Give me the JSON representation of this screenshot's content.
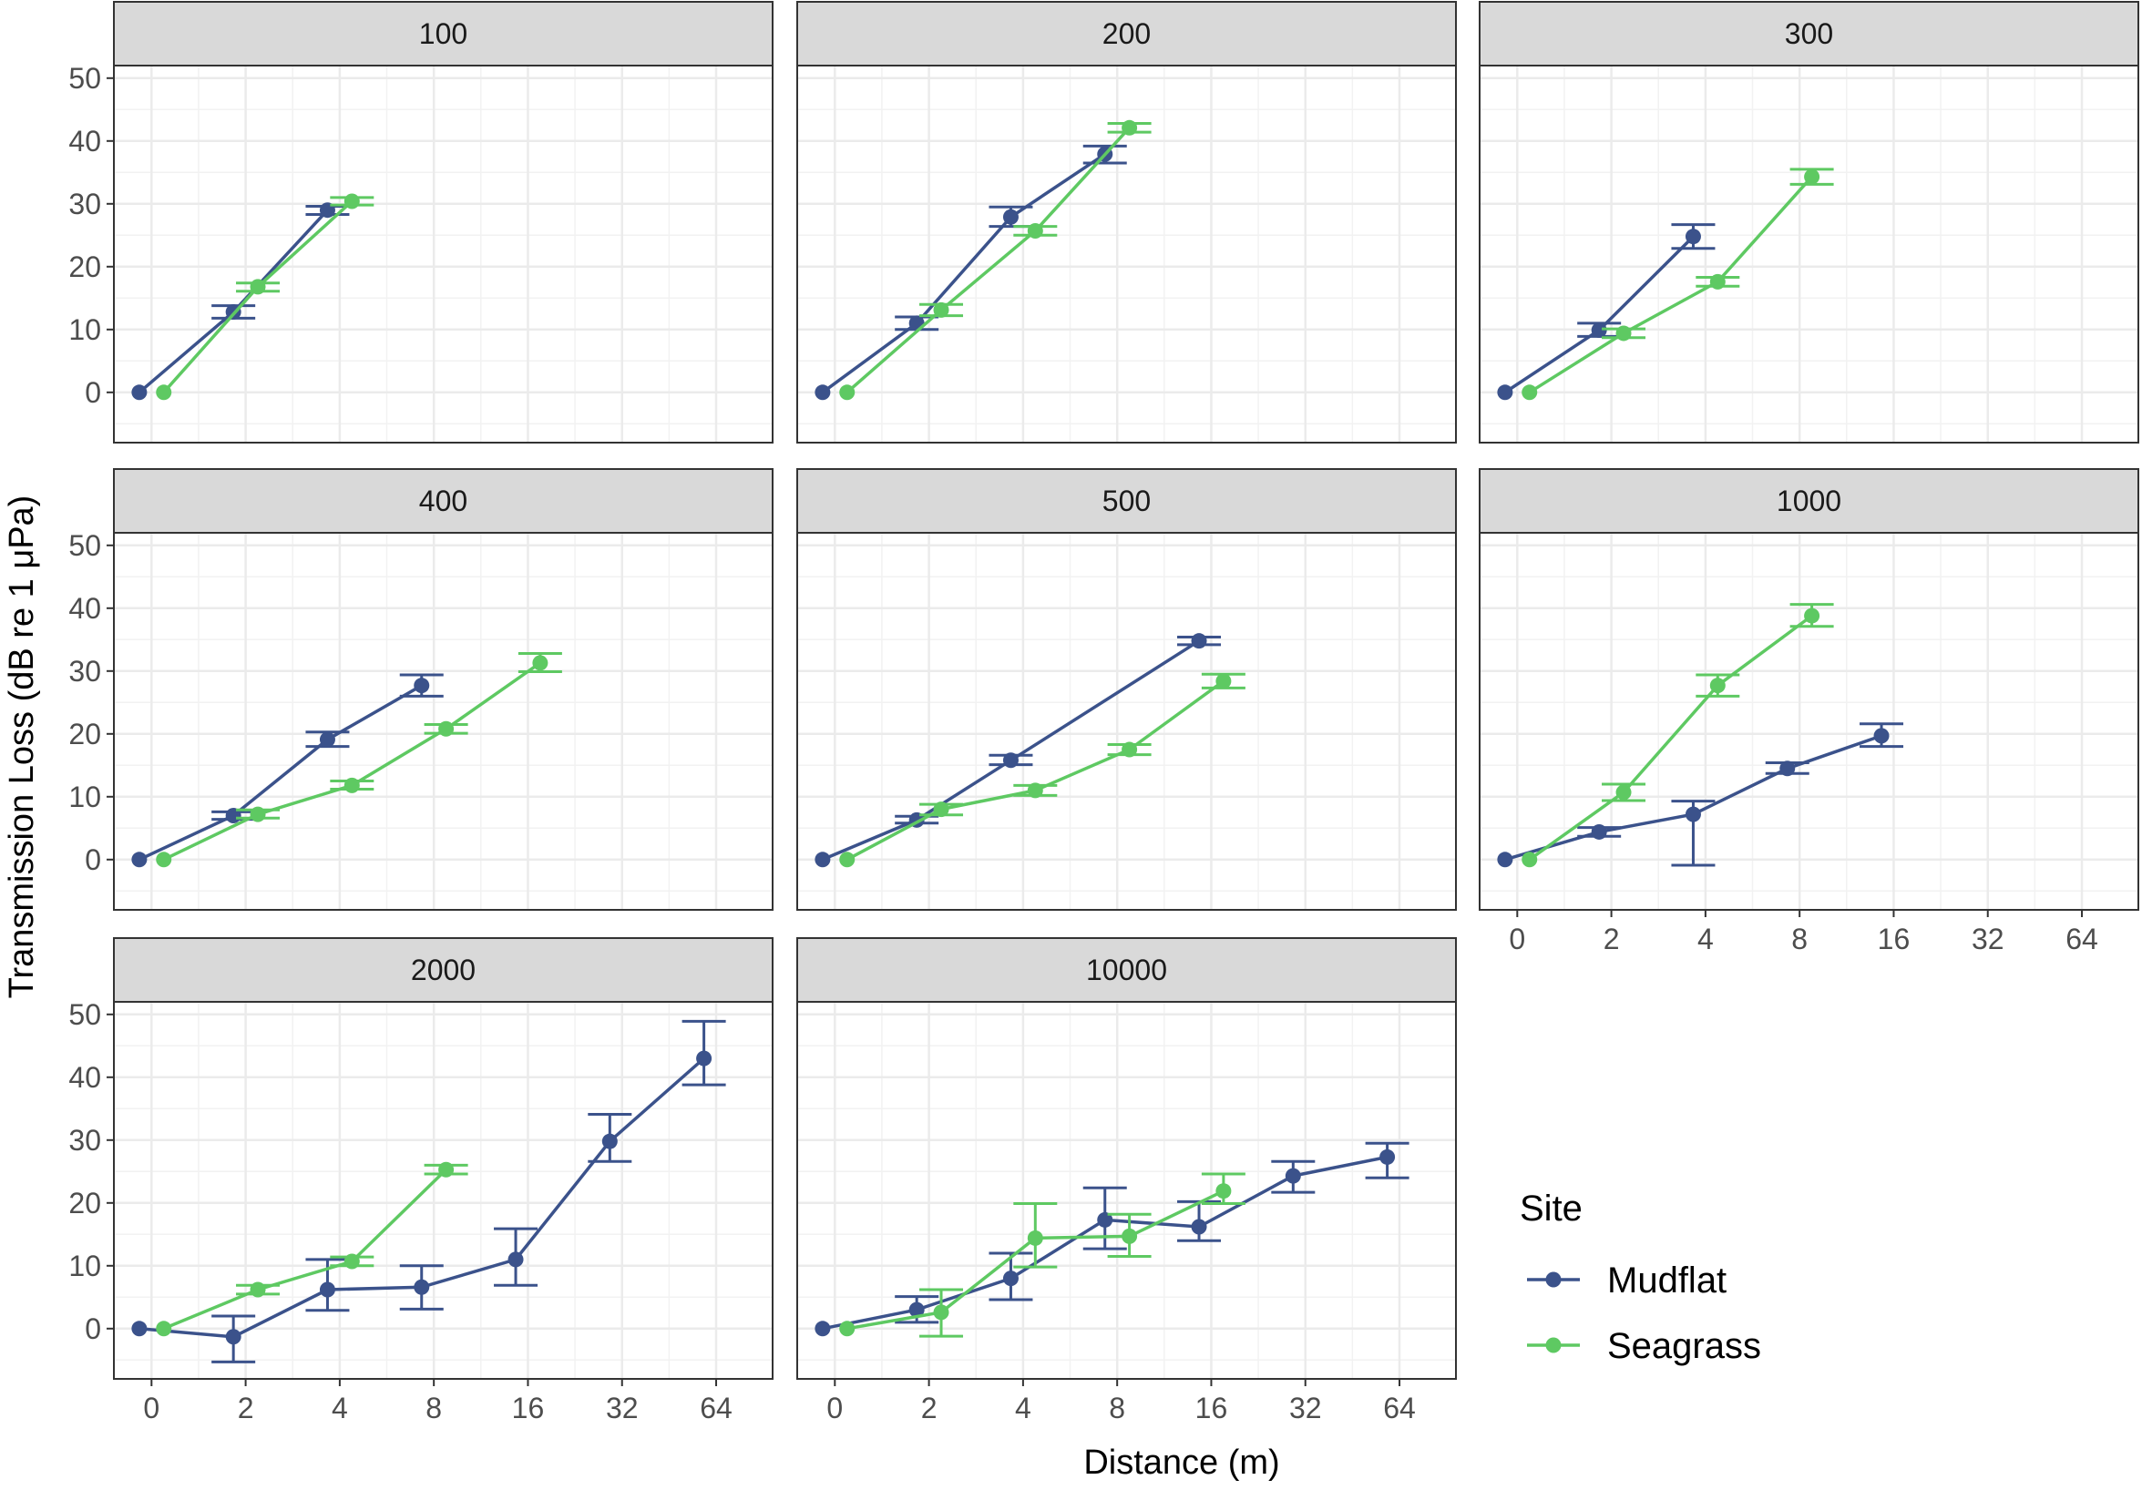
{
  "chart_data": {
    "type": "line",
    "facet_layout": "3 columns x 3 rows, facets fill row-wise",
    "xlabel": "Distance (m)",
    "ylabel": "Transmission Loss (dB re 1 μPa)",
    "x_ticks": [
      "0",
      "2",
      "4",
      "8",
      "16",
      "32",
      "64"
    ],
    "y_ticks": [
      "0",
      "10",
      "20",
      "30",
      "40",
      "50"
    ],
    "ylim": [
      -8,
      52
    ],
    "grid": true,
    "legend": {
      "title": "Site",
      "placement": "bottom-right",
      "items": [
        {
          "name": "Mudflat",
          "color": "#3b528b"
        },
        {
          "name": "Seagrass",
          "color": "#5ec962"
        }
      ]
    },
    "panels": [
      {
        "label": "100",
        "series": [
          {
            "name": "Mudflat",
            "color": "#3b528b",
            "points": [
              {
                "x": "0",
                "y": 0,
                "lo": 0,
                "hi": 0
              },
              {
                "x": "2",
                "y": 12.8,
                "lo": 11.8,
                "hi": 13.8
              },
              {
                "x": "4",
                "y": 29.0,
                "lo": 28.3,
                "hi": 29.6
              }
            ]
          },
          {
            "name": "Seagrass",
            "color": "#5ec962",
            "points": [
              {
                "x": "0",
                "y": 0,
                "lo": 0,
                "hi": 0
              },
              {
                "x": "2",
                "y": 16.8,
                "lo": 16.1,
                "hi": 17.4
              },
              {
                "x": "4",
                "y": 30.4,
                "lo": 29.8,
                "hi": 31.0
              }
            ]
          }
        ]
      },
      {
        "label": "200",
        "series": [
          {
            "name": "Mudflat",
            "color": "#3b528b",
            "points": [
              {
                "x": "0",
                "y": 0,
                "lo": 0,
                "hi": 0
              },
              {
                "x": "2",
                "y": 11.0,
                "lo": 10.0,
                "hi": 12.0
              },
              {
                "x": "4",
                "y": 27.9,
                "lo": 26.4,
                "hi": 29.5
              },
              {
                "x": "8",
                "y": 37.9,
                "lo": 36.5,
                "hi": 39.2
              }
            ]
          },
          {
            "name": "Seagrass",
            "color": "#5ec962",
            "points": [
              {
                "x": "0",
                "y": 0,
                "lo": 0,
                "hi": 0
              },
              {
                "x": "2",
                "y": 13.1,
                "lo": 12.2,
                "hi": 14.0
              },
              {
                "x": "4",
                "y": 25.7,
                "lo": 25.0,
                "hi": 26.4
              },
              {
                "x": "8",
                "y": 42.1,
                "lo": 41.4,
                "hi": 42.8
              }
            ]
          }
        ]
      },
      {
        "label": "300",
        "series": [
          {
            "name": "Mudflat",
            "color": "#3b528b",
            "points": [
              {
                "x": "0",
                "y": 0,
                "lo": 0,
                "hi": 0
              },
              {
                "x": "2",
                "y": 9.9,
                "lo": 8.9,
                "hi": 11.0
              },
              {
                "x": "4",
                "y": 24.8,
                "lo": 22.9,
                "hi": 26.7
              }
            ]
          },
          {
            "name": "Seagrass",
            "color": "#5ec962",
            "points": [
              {
                "x": "0",
                "y": 0,
                "lo": 0,
                "hi": 0
              },
              {
                "x": "2",
                "y": 9.4,
                "lo": 8.7,
                "hi": 10.1
              },
              {
                "x": "4",
                "y": 17.6,
                "lo": 16.9,
                "hi": 18.3
              },
              {
                "x": "8",
                "y": 34.3,
                "lo": 33.1,
                "hi": 35.5
              }
            ]
          }
        ]
      },
      {
        "label": "400",
        "series": [
          {
            "name": "Mudflat",
            "color": "#3b528b",
            "points": [
              {
                "x": "0",
                "y": 0,
                "lo": 0,
                "hi": 0
              },
              {
                "x": "2",
                "y": 7.0,
                "lo": 6.4,
                "hi": 7.6
              },
              {
                "x": "4",
                "y": 19.1,
                "lo": 18.0,
                "hi": 20.3
              },
              {
                "x": "8",
                "y": 27.7,
                "lo": 26.0,
                "hi": 29.4
              }
            ]
          },
          {
            "name": "Seagrass",
            "color": "#5ec962",
            "points": [
              {
                "x": "0",
                "y": 0,
                "lo": 0,
                "hi": 0
              },
              {
                "x": "2",
                "y": 7.2,
                "lo": 6.6,
                "hi": 7.9
              },
              {
                "x": "4",
                "y": 11.8,
                "lo": 11.2,
                "hi": 12.5
              },
              {
                "x": "8",
                "y": 20.8,
                "lo": 20.1,
                "hi": 21.5
              },
              {
                "x": "16",
                "y": 31.3,
                "lo": 29.9,
                "hi": 32.8
              }
            ]
          }
        ]
      },
      {
        "label": "500",
        "series": [
          {
            "name": "Mudflat",
            "color": "#3b528b",
            "points": [
              {
                "x": "0",
                "y": 0,
                "lo": 0,
                "hi": 0
              },
              {
                "x": "2",
                "y": 6.3,
                "lo": 5.8,
                "hi": 6.9
              },
              {
                "x": "4",
                "y": 15.8,
                "lo": 15.1,
                "hi": 16.6
              },
              {
                "x": "16",
                "y": 34.8,
                "lo": 34.2,
                "hi": 35.4
              }
            ]
          },
          {
            "name": "Seagrass",
            "color": "#5ec962",
            "points": [
              {
                "x": "0",
                "y": 0,
                "lo": 0,
                "hi": 0
              },
              {
                "x": "2",
                "y": 8.0,
                "lo": 7.1,
                "hi": 8.8
              },
              {
                "x": "4",
                "y": 11.0,
                "lo": 10.2,
                "hi": 11.8
              },
              {
                "x": "8",
                "y": 17.5,
                "lo": 16.7,
                "hi": 18.3
              },
              {
                "x": "16",
                "y": 28.4,
                "lo": 27.3,
                "hi": 29.5
              }
            ]
          }
        ]
      },
      {
        "label": "1000",
        "series": [
          {
            "name": "Mudflat",
            "color": "#3b528b",
            "points": [
              {
                "x": "0",
                "y": 0,
                "lo": 0,
                "hi": 0
              },
              {
                "x": "2",
                "y": 4.4,
                "lo": 3.7,
                "hi": 5.1
              },
              {
                "x": "4",
                "y": 7.2,
                "lo": -0.9,
                "hi": 9.3
              },
              {
                "x": "8",
                "y": 14.5,
                "lo": 13.7,
                "hi": 15.4
              },
              {
                "x": "16",
                "y": 19.7,
                "lo": 18.0,
                "hi": 21.6
              }
            ]
          },
          {
            "name": "Seagrass",
            "color": "#5ec962",
            "points": [
              {
                "x": "0",
                "y": 0,
                "lo": 0,
                "hi": 0
              },
              {
                "x": "2",
                "y": 10.7,
                "lo": 9.4,
                "hi": 12.0
              },
              {
                "x": "4",
                "y": 27.7,
                "lo": 26.0,
                "hi": 29.4
              },
              {
                "x": "8",
                "y": 38.8,
                "lo": 37.1,
                "hi": 40.6
              }
            ]
          }
        ]
      },
      {
        "label": "2000",
        "series": [
          {
            "name": "Mudflat",
            "color": "#3b528b",
            "points": [
              {
                "x": "0",
                "y": 0,
                "lo": 0,
                "hi": 0
              },
              {
                "x": "2",
                "y": -1.3,
                "lo": -5.3,
                "hi": 2.0
              },
              {
                "x": "4",
                "y": 6.2,
                "lo": 2.9,
                "hi": 11.0
              },
              {
                "x": "8",
                "y": 6.6,
                "lo": 3.1,
                "hi": 10.0
              },
              {
                "x": "16",
                "y": 11.0,
                "lo": 6.9,
                "hi": 15.9
              },
              {
                "x": "32",
                "y": 29.8,
                "lo": 26.6,
                "hi": 34.1
              },
              {
                "x": "64",
                "y": 43.0,
                "lo": 38.8,
                "hi": 48.9
              }
            ]
          },
          {
            "name": "Seagrass",
            "color": "#5ec962",
            "points": [
              {
                "x": "0",
                "y": 0,
                "lo": 0,
                "hi": 0
              },
              {
                "x": "2",
                "y": 6.2,
                "lo": 5.5,
                "hi": 6.9
              },
              {
                "x": "4",
                "y": 10.7,
                "lo": 10.0,
                "hi": 11.4
              },
              {
                "x": "8",
                "y": 25.3,
                "lo": 24.6,
                "hi": 26.0
              }
            ]
          }
        ]
      },
      {
        "label": "10000",
        "series": [
          {
            "name": "Mudflat",
            "color": "#3b528b",
            "points": [
              {
                "x": "0",
                "y": 0,
                "lo": 0,
                "hi": 0
              },
              {
                "x": "2",
                "y": 3.0,
                "lo": 1.0,
                "hi": 5.1
              },
              {
                "x": "4",
                "y": 8.0,
                "lo": 4.6,
                "hi": 12.0
              },
              {
                "x": "8",
                "y": 17.3,
                "lo": 12.7,
                "hi": 22.4
              },
              {
                "x": "16",
                "y": 16.2,
                "lo": 14.0,
                "hi": 20.2
              },
              {
                "x": "32",
                "y": 24.3,
                "lo": 21.7,
                "hi": 26.6
              },
              {
                "x": "64",
                "y": 27.3,
                "lo": 24.0,
                "hi": 29.5
              }
            ]
          },
          {
            "name": "Seagrass",
            "color": "#5ec962",
            "points": [
              {
                "x": "0",
                "y": 0,
                "lo": 0,
                "hi": 0
              },
              {
                "x": "2",
                "y": 2.6,
                "lo": -1.2,
                "hi": 6.2
              },
              {
                "x": "4",
                "y": 14.4,
                "lo": 9.8,
                "hi": 19.9
              },
              {
                "x": "8",
                "y": 14.7,
                "lo": 11.5,
                "hi": 18.2
              },
              {
                "x": "16",
                "y": 21.9,
                "lo": 19.9,
                "hi": 24.6
              }
            ]
          }
        ]
      }
    ]
  }
}
